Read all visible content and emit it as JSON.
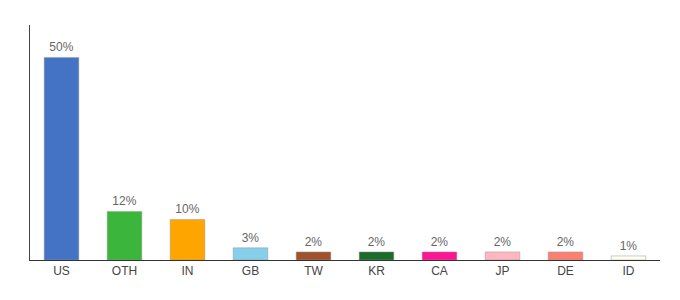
{
  "chart_data": {
    "type": "bar",
    "categories": [
      "US",
      "OTH",
      "IN",
      "GB",
      "TW",
      "KR",
      "CA",
      "JP",
      "DE",
      "ID"
    ],
    "values": [
      50,
      12,
      10,
      3,
      2,
      2,
      2,
      2,
      2,
      1
    ],
    "value_labels": [
      "50%",
      "12%",
      "10%",
      "3%",
      "2%",
      "2%",
      "2%",
      "2%",
      "2%",
      "1%"
    ],
    "colors": [
      "#4472C4",
      "#3CB53C",
      "#FFA500",
      "#87CEEB",
      "#A0522D",
      "#1B6B2A",
      "#FF1493",
      "#FFB6C1",
      "#FA8072",
      "#FFFFF0"
    ],
    "ylim": [
      0,
      58
    ],
    "data_labels": true,
    "tick_labels": "x",
    "grid": false
  }
}
